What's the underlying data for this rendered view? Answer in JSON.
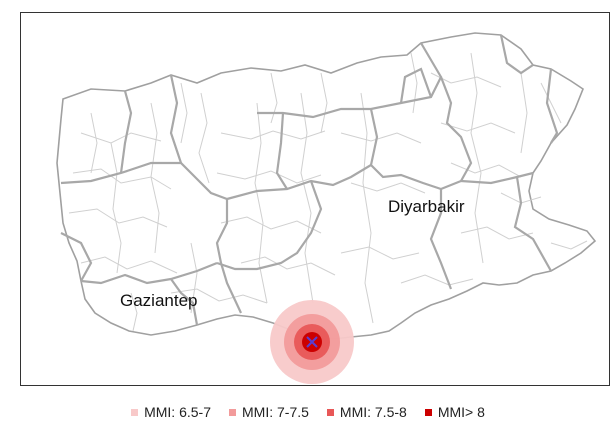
{
  "cities": [
    {
      "id": "diyarbakir",
      "name": "Diyarbakir"
    },
    {
      "id": "gaziantep",
      "name": "Gaziantep"
    }
  ],
  "epicenter": {
    "marker": "x-marker-icon",
    "color": "#5a3fd0"
  },
  "legend": {
    "items": [
      {
        "label": "MMI: 6.5-7",
        "color": "#f8c9c9"
      },
      {
        "label": "MMI: 7-7.5",
        "color": "#f29b9b"
      },
      {
        "label": "MMI: 7.5-8",
        "color": "#e85757"
      },
      {
        "label": "MMI> 8",
        "color": "#cc0000"
      }
    ]
  },
  "colors": {
    "region_outline": "#9a9a9a",
    "district_lines": "#cfcfcf",
    "province_lines": "#a6a6a6"
  }
}
